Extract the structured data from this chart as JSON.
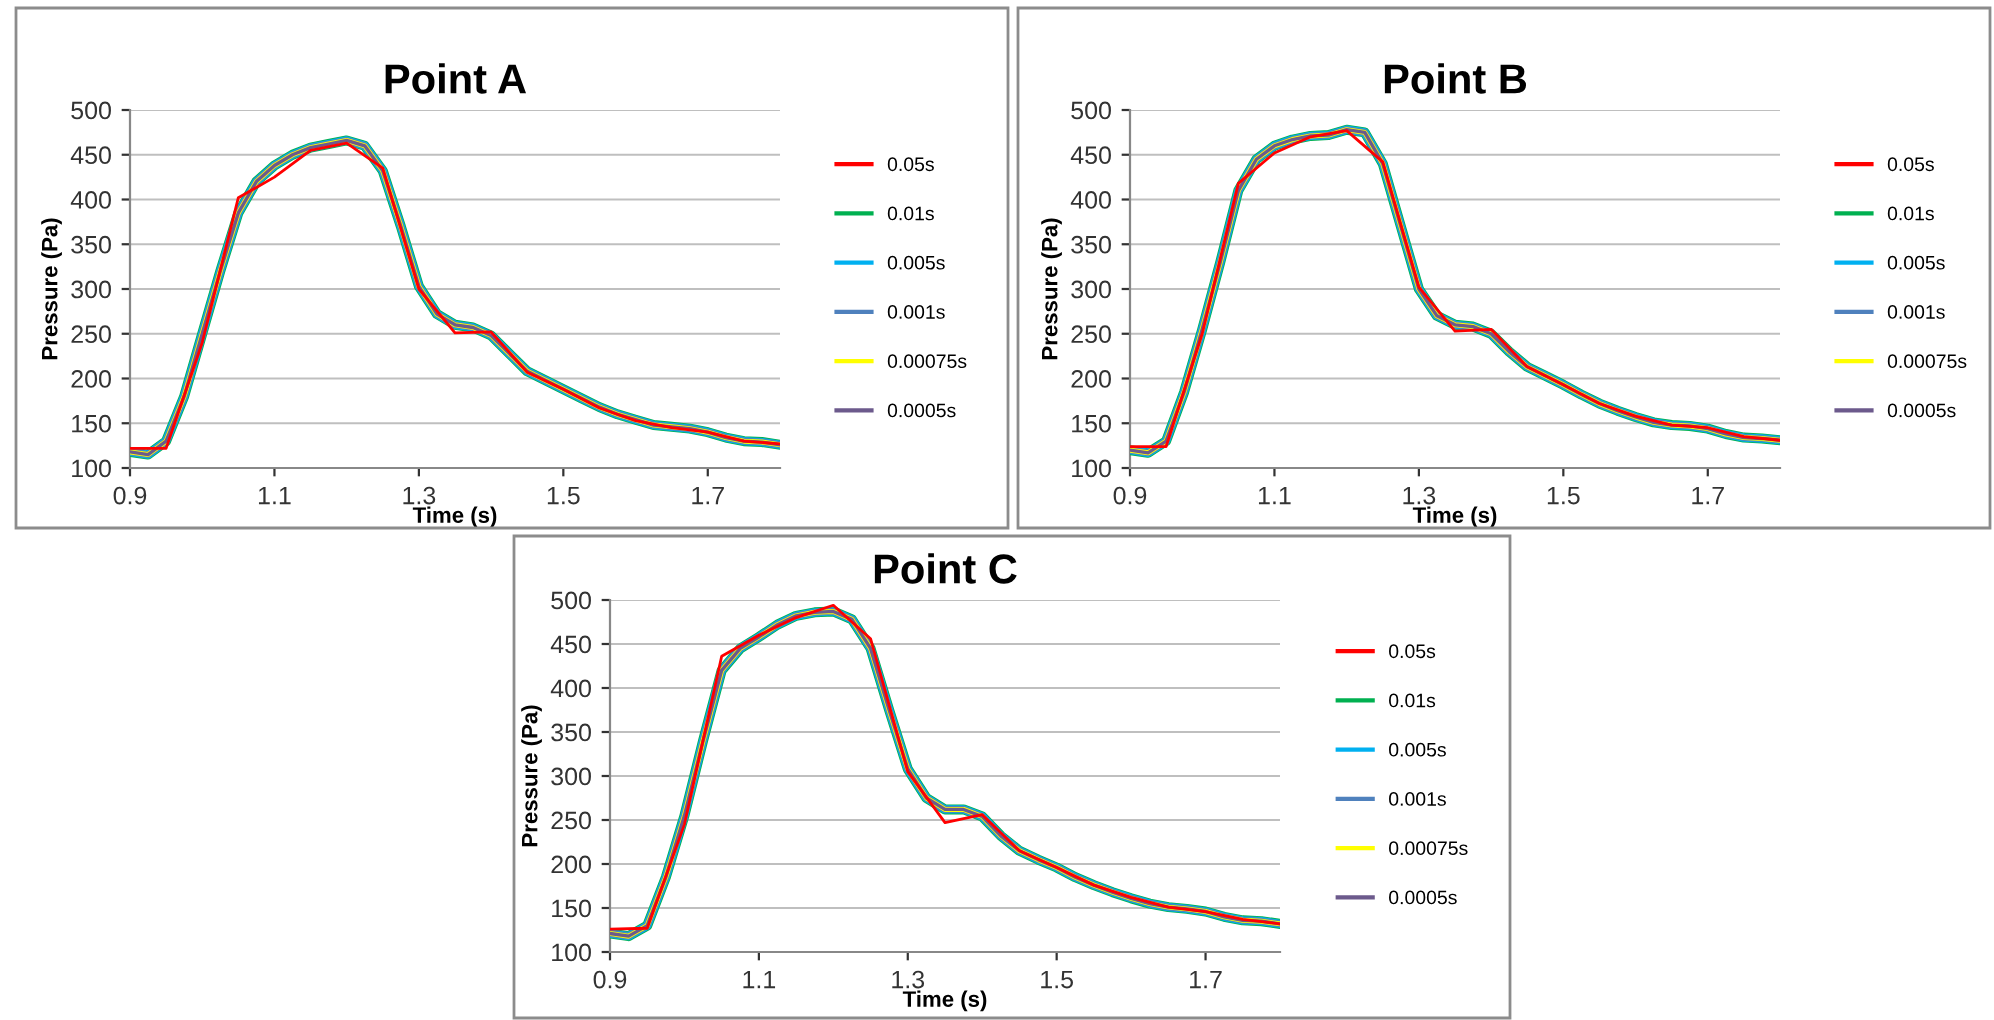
{
  "chart_data": [
    {
      "type": "line",
      "title": "Point A",
      "xlabel": "Time (s)",
      "ylabel": "Pressure (Pa)",
      "xlim": [
        0.9,
        1.8
      ],
      "xticks": [
        0.9,
        1.1,
        1.3,
        1.5,
        1.7
      ],
      "ylim": [
        100,
        500
      ],
      "yticks": [
        100,
        150,
        200,
        250,
        300,
        350,
        400,
        450,
        500
      ],
      "grid": "y",
      "legend": "right",
      "marker": "none",
      "x": [
        0.9,
        0.925,
        0.95,
        0.975,
        1.0,
        1.025,
        1.05,
        1.075,
        1.1,
        1.125,
        1.15,
        1.175,
        1.2,
        1.225,
        1.25,
        1.275,
        1.3,
        1.325,
        1.35,
        1.375,
        1.4,
        1.425,
        1.45,
        1.475,
        1.5,
        1.525,
        1.55,
        1.575,
        1.6,
        1.625,
        1.65,
        1.675,
        1.7,
        1.725,
        1.75,
        1.775,
        1.8
      ],
      "series": [
        {
          "name": "0.05s",
          "color": "#ff0000",
          "x": [
            0.9,
            0.95,
            1.0,
            1.05,
            1.1,
            1.15,
            1.2,
            1.25,
            1.3,
            1.35,
            1.4,
            1.45,
            1.5,
            1.55,
            1.6,
            1.65,
            1.7,
            1.75,
            1.8
          ],
          "values": [
            122,
            122,
            240,
            402,
            425,
            455,
            463,
            435,
            300,
            251,
            252,
            207,
            188,
            167,
            153,
            145,
            140,
            130,
            127
          ]
        },
        {
          "name": "0.01s",
          "color": "#00b050",
          "values": [
            118,
            115,
            130,
            180,
            250,
            320,
            385,
            420,
            438,
            450,
            458,
            462,
            466,
            460,
            432,
            370,
            303,
            272,
            260,
            257,
            248,
            228,
            208,
            198,
            188,
            178,
            168,
            160,
            154,
            148,
            146,
            144,
            140,
            134,
            130,
            129,
            126
          ]
        },
        {
          "name": "0.005s",
          "color": "#00b0f0",
          "values": [
            118,
            115,
            130,
            180,
            250,
            320,
            385,
            420,
            438,
            450,
            458,
            462,
            466,
            460,
            432,
            370,
            303,
            272,
            260,
            257,
            248,
            228,
            208,
            198,
            188,
            178,
            168,
            160,
            154,
            148,
            146,
            144,
            140,
            134,
            130,
            129,
            126
          ]
        },
        {
          "name": "0.001s",
          "color": "#4f81bd",
          "values": [
            118,
            115,
            130,
            180,
            250,
            320,
            385,
            420,
            438,
            450,
            458,
            462,
            466,
            460,
            432,
            370,
            303,
            272,
            260,
            257,
            248,
            228,
            208,
            198,
            188,
            178,
            168,
            160,
            154,
            148,
            146,
            144,
            140,
            134,
            130,
            129,
            126
          ]
        },
        {
          "name": "0.00075s",
          "color": "#ffff00",
          "values": [
            118,
            115,
            130,
            180,
            250,
            320,
            385,
            420,
            438,
            450,
            458,
            462,
            466,
            460,
            432,
            370,
            303,
            272,
            260,
            257,
            248,
            228,
            208,
            198,
            188,
            178,
            168,
            160,
            154,
            148,
            146,
            144,
            140,
            134,
            130,
            129,
            126
          ]
        },
        {
          "name": "0.0005s",
          "color": "#6c5a8c",
          "values": [
            118,
            115,
            130,
            180,
            250,
            320,
            385,
            420,
            438,
            450,
            458,
            462,
            466,
            460,
            432,
            370,
            303,
            272,
            260,
            257,
            248,
            228,
            208,
            198,
            188,
            178,
            168,
            160,
            154,
            148,
            146,
            144,
            140,
            134,
            130,
            129,
            126
          ]
        }
      ]
    },
    {
      "type": "line",
      "title": "Point B",
      "xlabel": "Time (s)",
      "ylabel": "Pressure (Pa)",
      "xlim": [
        0.9,
        1.8
      ],
      "xticks": [
        0.9,
        1.1,
        1.3,
        1.5,
        1.7
      ],
      "ylim": [
        100,
        500
      ],
      "yticks": [
        100,
        150,
        200,
        250,
        300,
        350,
        400,
        450,
        500
      ],
      "grid": "y",
      "legend": "right",
      "marker": "none",
      "x": [
        0.9,
        0.925,
        0.95,
        0.975,
        1.0,
        1.025,
        1.05,
        1.075,
        1.1,
        1.125,
        1.15,
        1.175,
        1.2,
        1.225,
        1.25,
        1.275,
        1.3,
        1.325,
        1.35,
        1.375,
        1.4,
        1.425,
        1.45,
        1.475,
        1.5,
        1.525,
        1.55,
        1.575,
        1.6,
        1.625,
        1.65,
        1.675,
        1.7,
        1.725,
        1.75,
        1.775,
        1.8
      ],
      "series": [
        {
          "name": "0.05s",
          "color": "#ff0000",
          "x": [
            0.9,
            0.95,
            1.0,
            1.05,
            1.1,
            1.15,
            1.2,
            1.25,
            1.3,
            1.35,
            1.4,
            1.45,
            1.5,
            1.55,
            1.6,
            1.65,
            1.7,
            1.75,
            1.8
          ],
          "values": [
            124,
            124,
            250,
            418,
            452,
            470,
            477,
            442,
            302,
            253,
            255,
            213,
            193,
            172,
            158,
            148,
            145,
            135,
            131
          ]
        },
        {
          "name": "0.01s",
          "color": "#00b050",
          "values": [
            120,
            117,
            130,
            185,
            255,
            330,
            410,
            445,
            460,
            467,
            471,
            472,
            478,
            475,
            440,
            370,
            300,
            270,
            260,
            258,
            250,
            230,
            213,
            203,
            193,
            182,
            172,
            164,
            157,
            151,
            148,
            147,
            144,
            138,
            134,
            133,
            131
          ]
        },
        {
          "name": "0.005s",
          "color": "#00b0f0",
          "values": [
            120,
            117,
            130,
            185,
            255,
            330,
            410,
            445,
            460,
            467,
            471,
            472,
            478,
            475,
            440,
            370,
            300,
            270,
            260,
            258,
            250,
            230,
            213,
            203,
            193,
            182,
            172,
            164,
            157,
            151,
            148,
            147,
            144,
            138,
            134,
            133,
            131
          ]
        },
        {
          "name": "0.001s",
          "color": "#4f81bd",
          "values": [
            120,
            117,
            130,
            185,
            255,
            330,
            410,
            445,
            460,
            467,
            471,
            472,
            478,
            475,
            440,
            370,
            300,
            270,
            260,
            258,
            250,
            230,
            213,
            203,
            193,
            182,
            172,
            164,
            157,
            151,
            148,
            147,
            144,
            138,
            134,
            133,
            131
          ]
        },
        {
          "name": "0.00075s",
          "color": "#ffff00",
          "values": [
            120,
            117,
            130,
            185,
            255,
            330,
            410,
            445,
            460,
            467,
            471,
            472,
            478,
            475,
            440,
            370,
            300,
            270,
            260,
            258,
            250,
            230,
            213,
            203,
            193,
            182,
            172,
            164,
            157,
            151,
            148,
            147,
            144,
            138,
            134,
            133,
            131
          ]
        },
        {
          "name": "0.0005s",
          "color": "#6c5a8c",
          "values": [
            120,
            117,
            130,
            185,
            255,
            330,
            410,
            445,
            460,
            467,
            471,
            472,
            478,
            475,
            440,
            370,
            300,
            270,
            260,
            258,
            250,
            230,
            213,
            203,
            193,
            182,
            172,
            164,
            157,
            151,
            148,
            147,
            144,
            138,
            134,
            133,
            131
          ]
        }
      ]
    },
    {
      "type": "line",
      "title": "Point C",
      "xlabel": "Time (s)",
      "ylabel": "Pressure (Pa)",
      "xlim": [
        0.9,
        1.8
      ],
      "xticks": [
        0.9,
        1.1,
        1.3,
        1.5,
        1.7
      ],
      "ylim": [
        100,
        500
      ],
      "yticks": [
        100,
        150,
        200,
        250,
        300,
        350,
        400,
        450,
        500
      ],
      "grid": "y",
      "legend": "right",
      "marker": "none",
      "x": [
        0.9,
        0.925,
        0.95,
        0.975,
        1.0,
        1.025,
        1.05,
        1.075,
        1.1,
        1.125,
        1.15,
        1.175,
        1.2,
        1.225,
        1.25,
        1.275,
        1.3,
        1.325,
        1.35,
        1.375,
        1.4,
        1.425,
        1.45,
        1.475,
        1.5,
        1.525,
        1.55,
        1.575,
        1.6,
        1.625,
        1.65,
        1.675,
        1.7,
        1.725,
        1.75,
        1.775,
        1.8
      ],
      "series": [
        {
          "name": "0.05s",
          "color": "#ff0000",
          "x": [
            0.9,
            0.95,
            1.0,
            1.05,
            1.1,
            1.15,
            1.2,
            1.25,
            1.3,
            1.35,
            1.4,
            1.45,
            1.5,
            1.55,
            1.6,
            1.65,
            1.7,
            1.75,
            1.8
          ],
          "values": [
            126,
            127,
            245,
            436,
            460,
            480,
            494,
            456,
            305,
            247,
            256,
            215,
            196,
            176,
            162,
            151,
            146,
            137,
            132
          ]
        },
        {
          "name": "0.01s",
          "color": "#00b050",
          "values": [
            121,
            118,
            130,
            185,
            255,
            340,
            420,
            445,
            458,
            472,
            482,
            486,
            487,
            478,
            445,
            375,
            308,
            275,
            262,
            262,
            254,
            232,
            215,
            205,
            196,
            185,
            176,
            168,
            161,
            155,
            151,
            149,
            146,
            140,
            136,
            135,
            132
          ]
        },
        {
          "name": "0.005s",
          "color": "#00b0f0",
          "values": [
            121,
            118,
            130,
            185,
            255,
            340,
            420,
            445,
            458,
            472,
            482,
            486,
            487,
            478,
            445,
            375,
            308,
            275,
            262,
            262,
            254,
            232,
            215,
            205,
            196,
            185,
            176,
            168,
            161,
            155,
            151,
            149,
            146,
            140,
            136,
            135,
            132
          ]
        },
        {
          "name": "0.001s",
          "color": "#4f81bd",
          "values": [
            121,
            118,
            130,
            185,
            255,
            340,
            420,
            445,
            458,
            472,
            482,
            486,
            487,
            478,
            445,
            375,
            308,
            275,
            262,
            262,
            254,
            232,
            215,
            205,
            196,
            185,
            176,
            168,
            161,
            155,
            151,
            149,
            146,
            140,
            136,
            135,
            132
          ]
        },
        {
          "name": "0.00075s",
          "color": "#ffff00",
          "values": [
            121,
            118,
            130,
            185,
            255,
            340,
            420,
            445,
            458,
            472,
            482,
            486,
            487,
            478,
            445,
            375,
            308,
            275,
            262,
            262,
            254,
            232,
            215,
            205,
            196,
            185,
            176,
            168,
            161,
            155,
            151,
            149,
            146,
            140,
            136,
            135,
            132
          ]
        },
        {
          "name": "0.0005s",
          "color": "#6c5a8c",
          "values": [
            121,
            118,
            130,
            185,
            255,
            340,
            420,
            445,
            458,
            472,
            482,
            486,
            487,
            478,
            445,
            375,
            308,
            275,
            262,
            262,
            254,
            232,
            215,
            205,
            196,
            185,
            176,
            168,
            161,
            155,
            151,
            149,
            146,
            140,
            136,
            135,
            132
          ]
        }
      ]
    }
  ]
}
